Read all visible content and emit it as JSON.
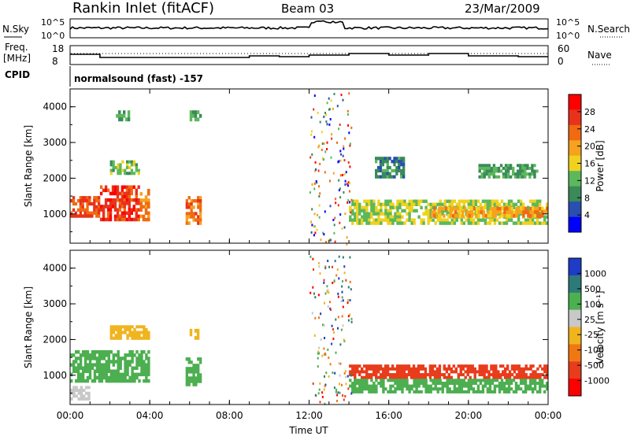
{
  "header": {
    "station": "Rankin Inlet (fitACF)",
    "beam": "Beam 03",
    "date": "23/Mar/2009"
  },
  "top_panels": {
    "nsky_label": "N.Sky",
    "nsky_ticks": [
      "10^5",
      "10^0"
    ],
    "nsearch_label": "N.Search",
    "nsearch_ticks": [
      "10^5",
      "10^0"
    ],
    "freq_label": "Freq.",
    "freq_unit": "[MHz]",
    "freq_ticks": [
      "18",
      "8"
    ],
    "nave_label": "Nave",
    "nave_ticks": [
      "60",
      "0"
    ],
    "cpid_label": "CPID",
    "cpid_text": "normalsound (fast) -157"
  },
  "colors": {
    "power_scale": [
      "#0000ff",
      "#2a4fb0",
      "#3a8a5a",
      "#5cb85c",
      "#f0d21e",
      "#f6a21e",
      "#f06a12",
      "#e8321c",
      "#ff0000"
    ],
    "velocity_scale": [
      "#1e3cc8",
      "#2e7a78",
      "#4caf50",
      "#c8c8c8",
      "#f0b41e",
      "#f07812",
      "#e83c1c",
      "#ff0000"
    ]
  },
  "chart_data": [
    {
      "type": "heatmap",
      "name": "power",
      "ylabel": "Slant Range [km]",
      "xlabel": "",
      "ylim": [
        180,
        4500
      ],
      "yticks": [
        "1000",
        "2000",
        "3000",
        "4000"
      ],
      "colorbar_label": "Power [dB]",
      "colorbar_ticks": [
        "28",
        "24",
        "20",
        "16",
        "12",
        "8",
        "4"
      ],
      "echo_regions": [
        {
          "t": [
            0.0,
            1.5
          ],
          "r": [
            900,
            1500
          ],
          "level": 26
        },
        {
          "t": [
            1.5,
            3.5
          ],
          "r": [
            800,
            1800
          ],
          "level": 28
        },
        {
          "t": [
            3.5,
            4.0
          ],
          "r": [
            800,
            1700
          ],
          "level": 22
        },
        {
          "t": [
            5.8,
            6.6
          ],
          "r": [
            700,
            1500
          ],
          "level": 24
        },
        {
          "t": [
            2.0,
            3.5
          ],
          "r": [
            2100,
            2500
          ],
          "level": 12
        },
        {
          "t": [
            2.3,
            3.0
          ],
          "r": [
            3600,
            3900
          ],
          "level": 10
        },
        {
          "t": [
            6.0,
            6.6
          ],
          "r": [
            3600,
            3900
          ],
          "level": 10
        },
        {
          "t": [
            14.0,
            24.0
          ],
          "r": [
            700,
            1400
          ],
          "level": 14
        },
        {
          "t": [
            18.0,
            24.0
          ],
          "r": [
            900,
            1200
          ],
          "level": 20
        },
        {
          "t": [
            15.3,
            16.8
          ],
          "r": [
            2000,
            2600
          ],
          "level": 8
        },
        {
          "t": [
            20.5,
            23.5
          ],
          "r": [
            2000,
            2400
          ],
          "level": 10
        }
      ]
    },
    {
      "type": "heatmap",
      "name": "velocity",
      "ylabel": "Slant Range [km]",
      "xlabel": "Time UT",
      "ylim": [
        180,
        4500
      ],
      "yticks": [
        "1000",
        "2000",
        "3000",
        "4000"
      ],
      "xticks": [
        "00:00",
        "04:00",
        "08:00",
        "12:00",
        "16:00",
        "20:00",
        "00:00"
      ],
      "colorbar_label": "Velocity [m s⁻¹]",
      "colorbar_ticks": [
        "1000",
        "500",
        "100",
        "25",
        "-25",
        "-100",
        "-500",
        "-1000"
      ],
      "echo_regions": [
        {
          "t": [
            0.0,
            4.0
          ],
          "r": [
            800,
            1700
          ],
          "level": 400
        },
        {
          "t": [
            5.8,
            6.6
          ],
          "r": [
            700,
            1500
          ],
          "level": 300
        },
        {
          "t": [
            2.0,
            4.0
          ],
          "r": [
            2000,
            2400
          ],
          "level": 0
        },
        {
          "t": [
            6.0,
            6.6
          ],
          "r": [
            2000,
            2300
          ],
          "level": 0
        },
        {
          "t": [
            14.0,
            20.5
          ],
          "r": [
            900,
            1300
          ],
          "level": -300
        },
        {
          "t": [
            20.5,
            24.0
          ],
          "r": [
            900,
            1300
          ],
          "level": -150
        },
        {
          "t": [
            14.0,
            24.0
          ],
          "r": [
            500,
            900
          ],
          "level": 300
        },
        {
          "t": [
            0.0,
            1.0
          ],
          "r": [
            300,
            700
          ],
          "level": 50
        }
      ]
    }
  ]
}
